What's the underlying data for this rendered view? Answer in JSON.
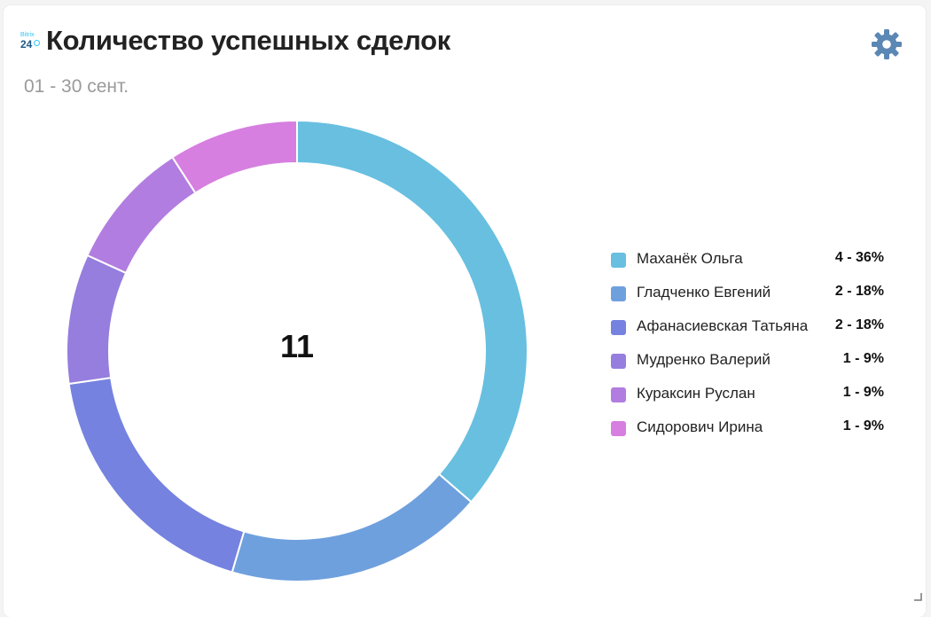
{
  "header": {
    "logo_text_top": "Bitrix",
    "logo_text_num": "24",
    "title": "Количество успешных сделок",
    "subtitle": "01 - 30 сент."
  },
  "icons": {
    "settings": "gear-icon",
    "logo": "bitrix24-logo"
  },
  "chart_data": {
    "type": "pie",
    "variant": "donut",
    "total": "11",
    "slices": [
      {
        "name": "Маханёк Ольга",
        "value": 4,
        "label": "4 - 36%",
        "color": "#68bfe0"
      },
      {
        "name": "Гладченко Евгений",
        "value": 2,
        "label": "2 - 18%",
        "color": "#6fa0de"
      },
      {
        "name": "Афанасиевская Татьяна",
        "value": 2,
        "label": "2 - 18%",
        "color": "#7582df"
      },
      {
        "name": "Мудренко Валерий",
        "value": 1,
        "label": "1 - 9%",
        "color": "#957ede"
      },
      {
        "name": "Кураксин Руслан",
        "value": 1,
        "label": "1 - 9%",
        "color": "#b27de0"
      },
      {
        "name": "Сидорович Ирина",
        "value": 1,
        "label": "1 - 9%",
        "color": "#d67fe0"
      }
    ],
    "legend_position": "right"
  },
  "colors": {
    "gear": "#5a87b4",
    "title": "#222222",
    "subtitle": "#9a9a9a"
  }
}
